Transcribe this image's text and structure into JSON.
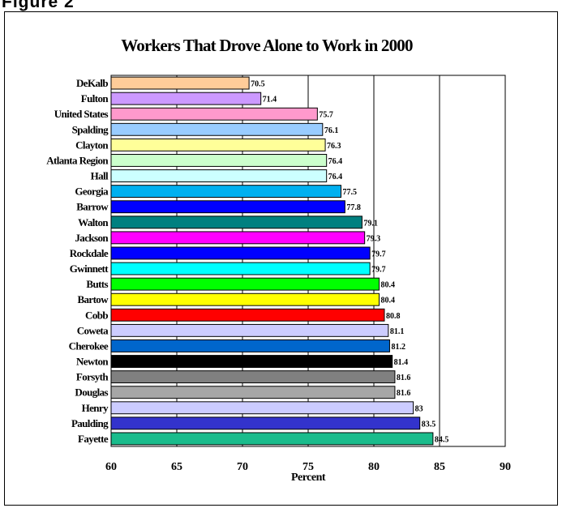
{
  "figure_label": "Figure 2",
  "chart_data": {
    "type": "bar",
    "orientation": "horizontal",
    "title": "Workers That Drove Alone to Work in 2000",
    "xlabel": "Percent",
    "ylabel": "",
    "xlim": [
      60,
      90
    ],
    "xticks": [
      60,
      65,
      70,
      75,
      80,
      85,
      90
    ],
    "grid": "vertical gridlines at 70, 75, 80, 85",
    "legend": "none",
    "categories": [
      "DeKalb",
      "Fulton",
      "United States",
      "Spalding",
      "Clayton",
      "Atlanta Region",
      "Hall",
      "Georgia",
      "Barrow",
      "Walton",
      "Jackson",
      "Rockdale",
      "Gwinnett",
      "Butts",
      "Bartow",
      "Cobb",
      "Coweta",
      "Cherokee",
      "Newton",
      "Forsyth",
      "Douglas",
      "Henry",
      "Paulding",
      "Fayette"
    ],
    "values": [
      70.5,
      71.4,
      75.7,
      76.1,
      76.3,
      76.4,
      76.4,
      77.5,
      77.8,
      79.1,
      79.3,
      79.7,
      79.7,
      80.4,
      80.4,
      80.8,
      81.1,
      81.2,
      81.4,
      81.6,
      81.6,
      83,
      83.5,
      84.5
    ],
    "value_labels": [
      "70.5",
      "71.4",
      "75.7",
      "76.1",
      "76.3",
      "76.4",
      "76.4",
      "77.5",
      "77.8",
      "79.1",
      "79.3",
      "79.7",
      "79.7",
      "80.4",
      "80.4",
      "80.8",
      "81.1",
      "81.2",
      "81.4",
      "81.6",
      "81.6",
      "83",
      "83.5",
      "84.5"
    ],
    "colors": [
      "#FFCC99",
      "#CC99FF",
      "#FF99CC",
      "#99CCFF",
      "#FFFF99",
      "#CCFFCC",
      "#CCFFFF",
      "#00B0F0",
      "#0000FF",
      "#008080",
      "#FF00FF",
      "#0000FF",
      "#00FFFF",
      "#00FF00",
      "#FFFF00",
      "#FF0000",
      "#CCCCFF",
      "#0066CC",
      "#000000",
      "#808080",
      "#A6A6A6",
      "#CCCCFF",
      "#3333CC",
      "#1ABC8C"
    ]
  }
}
